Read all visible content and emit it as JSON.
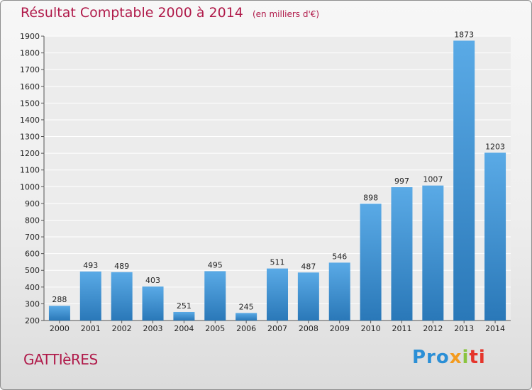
{
  "header": {
    "title": "Résultat Comptable 2000 à 2014",
    "subtitle": "(en milliers d'€)"
  },
  "footer": {
    "commune": "GATTIèRES",
    "logo_parts": [
      "Pro",
      "x",
      "i",
      "ti"
    ]
  },
  "colors": {
    "title": "#b01a4a",
    "bar_top": "#5aaae6",
    "bar_bottom": "#2a78b8"
  },
  "chart_data": {
    "type": "bar",
    "title": "Résultat Comptable 2000 à 2014",
    "subtitle": "(en milliers d'€)",
    "categories": [
      "2000",
      "2001",
      "2002",
      "2003",
      "2004",
      "2005",
      "2006",
      "2007",
      "2008",
      "2009",
      "2010",
      "2011",
      "2012",
      "2013",
      "2014"
    ],
    "values": [
      288,
      493,
      489,
      403,
      251,
      495,
      245,
      511,
      487,
      546,
      898,
      997,
      1007,
      1873,
      1203
    ],
    "ylim": [
      200,
      1900
    ],
    "yticks": [
      200,
      300,
      400,
      500,
      600,
      700,
      800,
      900,
      1000,
      1100,
      1200,
      1300,
      1400,
      1500,
      1600,
      1700,
      1800,
      1900
    ],
    "grid": true,
    "xlabel": "",
    "ylabel": ""
  }
}
